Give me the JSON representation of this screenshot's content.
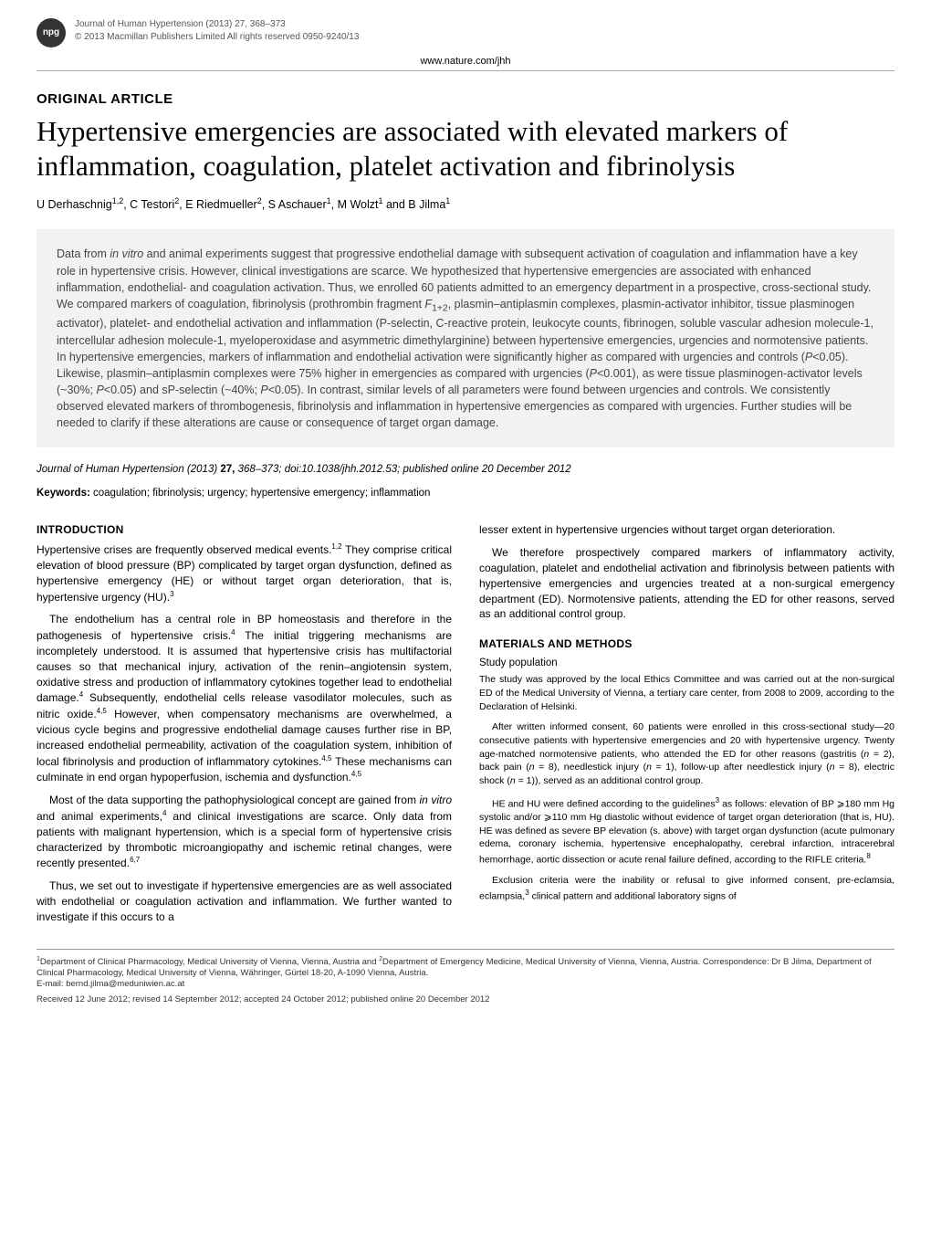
{
  "header": {
    "badge": "npg",
    "journal_line1": "Journal of Human Hypertension (2013) 27, 368–373",
    "journal_line2": "© 2013 Macmillan Publishers Limited   All rights reserved 0950-9240/13",
    "url": "www.nature.com/jhh"
  },
  "article": {
    "section_label": "ORIGINAL ARTICLE",
    "title": "Hypertensive emergencies are associated with elevated markers of inflammation, coagulation, platelet activation and fibrinolysis",
    "authors_html": "U Derhaschnig<sup>1,2</sup>, C Testori<sup>2</sup>, E Riedmueller<sup>2</sup>, S Aschauer<sup>1</sup>, M Wolzt<sup>1</sup> and B Jilma<sup>1</sup>"
  },
  "abstract": {
    "text_html": "Data from <em>in vitro</em> and animal experiments suggest that progressive endothelial damage with subsequent activation of coagulation and inflammation have a key role in hypertensive crisis. However, clinical investigations are scarce. We hypothesized that hypertensive emergencies are associated with enhanced inflammation, endothelial- and coagulation activation. Thus, we enrolled 60 patients admitted to an emergency department in a prospective, cross-sectional study. We compared markers of coagulation, fibrinolysis (prothrombin fragment <em>F</em><sub>1+2</sub>, plasmin–antiplasmin complexes, plasmin-activator inhibitor, tissue plasminogen activator), platelet- and endothelial activation and inflammation (P-selectin, C-reactive protein, leukocyte counts, fibrinogen, soluble vascular adhesion molecule-1, intercellular adhesion molecule-1, myeloperoxidase and asymmetric dimethylarginine) between hypertensive emergencies, urgencies and normotensive patients. In hypertensive emergencies, markers of inflammation and endothelial activation were significantly higher as compared with urgencies and controls (<em>P</em><0.05). Likewise, plasmin–antiplasmin complexes were 75% higher in emergencies as compared with urgencies (<em>P</em><0.001), as were tissue plasminogen-activator levels (~30%; <em>P</em><0.05) and sP-selectin (~40%; <em>P</em><0.05). In contrast, similar levels of all parameters were found between urgencies and controls. We consistently observed elevated markers of thrombogenesis, fibrinolysis and inflammation in hypertensive emergencies as compared with urgencies. Further studies will be needed to clarify if these alterations are cause or consequence of target organ damage."
  },
  "citation": {
    "text_html": "<em>Journal of Human Hypertension</em> (2013) <span class='bold'>27,</span> 368–373; doi:10.1038/jhh.2012.53; published online 20 December 2012"
  },
  "keywords": {
    "label": "Keywords:",
    "text": " coagulation; fibrinolysis; urgency; hypertensive emergency; inflammation"
  },
  "intro": {
    "heading": "INTRODUCTION",
    "p1_html": "Hypertensive crises are frequently observed medical events.<sup>1,2</sup> They comprise critical elevation of blood pressure (BP) complicated by target organ dysfunction, defined as hypertensive emergency (HE) or without target organ deterioration, that is, hypertensive urgency (HU).<sup>3</sup>",
    "p2_html": "The endothelium has a central role in BP homeostasis and therefore in the pathogenesis of hypertensive crisis.<sup>4</sup> The initial triggering mechanisms are incompletely understood. It is assumed that hypertensive crisis has multifactorial causes so that mechanical injury, activation of the renin–angiotensin system, oxidative stress and production of inflammatory cytokines together lead to endothelial damage.<sup>4</sup> Subsequently, endothelial cells release vasodilator molecules, such as nitric oxide.<sup>4,5</sup> However, when compensatory mechanisms are overwhelmed, a vicious cycle begins and progressive endothelial damage causes further rise in BP, increased endothelial permeability, activation of the coagulation system, inhibition of local fibrinolysis and production of inflammatory cytokines.<sup>4,5</sup> These mechanisms can culminate in end organ hypoperfusion, ischemia and dysfunction.<sup>4,5</sup>",
    "p3_html": "Most of the data supporting the pathophysiological concept are gained from <em>in vitro</em> and animal experiments,<sup>4</sup> and clinical investigations are scarce. Only data from patients with malignant hypertension, which is a special form of hypertensive crisis characterized by thrombotic microangiopathy and ischemic retinal changes, were recently presented.<sup>6,7</sup>",
    "p4_html": "Thus, we set out to investigate if hypertensive emergencies are as well associated with endothelial or coagulation activation and inflammation. We further wanted to investigate if this occurs to a",
    "p5_html": "lesser extent in hypertensive urgencies without target organ deterioration.",
    "p6_html": "We therefore prospectively compared markers of inflammatory activity, coagulation, platelet and endothelial activation and fibrinolysis between patients with hypertensive emergencies and urgencies treated at a non-surgical emergency department (ED). Normotensive patients, attending the ED for other reasons, served as an additional control group."
  },
  "methods": {
    "heading": "MATERIALS AND METHODS",
    "sub1": "Study population",
    "m1_html": "The study was approved by the local Ethics Committee and was carried out at the non-surgical ED of the Medical University of Vienna, a tertiary care center, from 2008 to 2009, according to the Declaration of Helsinki.",
    "m2_html": "After written informed consent, 60 patients were enrolled in this cross-sectional study—20 consecutive patients with hypertensive emergencies and 20 with hypertensive urgency. Twenty age-matched normotensive patients, who attended the ED for other reasons (gastritis (<em>n</em> = 2), back pain (<em>n</em> = 8), needlestick injury (<em>n</em> = 1), follow-up after needlestick injury (<em>n</em> = 8), electric shock (<em>n</em> = 1)), served as an additional control group.",
    "m3_html": "HE and HU were defined according to the guidelines<sup>3</sup> as follows: elevation of BP ⩾180 mm Hg systolic and/or ⩾110 mm Hg diastolic without evidence of target organ deterioration (that is, HU). HE was defined as severe BP elevation (s. above) with target organ dysfunction (acute pulmonary edema, coronary ischemia, hypertensive encephalopathy, cerebral infarction, intracerebral hemorrhage, aortic dissection or acute renal failure defined, according to the RIFLE criteria.<sup>8</sup>",
    "m4_html": "Exclusion criteria were the inability or refusal to give informed consent, pre-eclamsia, eclampsia,<sup>3</sup> clinical pattern and additional laboratory signs of"
  },
  "footer": {
    "affil_html": "<sup>1</sup>Department of Clinical Pharmacology, Medical University of Vienna, Vienna, Austria and <sup>2</sup>Department of Emergency Medicine, Medical University of Vienna, Vienna, Austria. Correspondence: Dr B Jilma, Department of Clinical Pharmacology, Medical University of Vienna, Währinger, Gürtel 18-20, A-1090 Vienna, Austria.",
    "email": "E-mail: bernd.jilma@meduniwien.ac.at",
    "received": "Received 12 June 2012; revised 14 September 2012; accepted 24 October 2012; published online 20 December 2012"
  }
}
